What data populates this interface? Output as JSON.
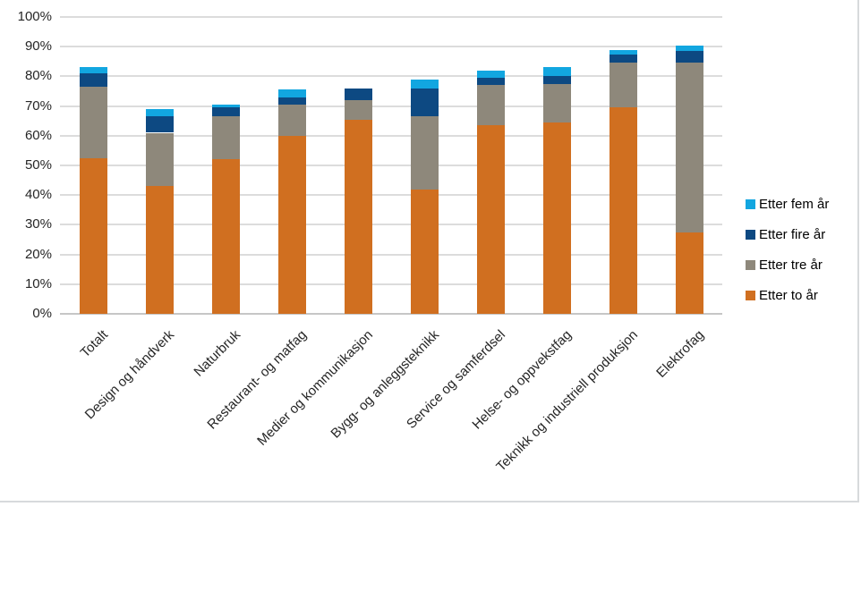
{
  "chart_data": {
    "type": "bar",
    "variant": "stacked-vertical",
    "title": "",
    "xlabel": "",
    "ylabel": "",
    "ylim": [
      0,
      100
    ],
    "ytick_step": 10,
    "yticks": [
      "0%",
      "10%",
      "20%",
      "30%",
      "40%",
      "50%",
      "60%",
      "70%",
      "80%",
      "90%",
      "100%"
    ],
    "grid": true,
    "legend_position": "right",
    "categories": [
      "Totalt",
      "Design og håndverk",
      "Naturbruk",
      "Restaurant- og matfag",
      "Medier og kommunikasjon",
      "Bygg- og anleggsteknikk",
      "Service og samferdsel",
      "Helse- og oppvekstfag",
      "Teknikk og industriell produksjon",
      "Elektrofag"
    ],
    "series": [
      {
        "name": "Etter to år",
        "color": "#d06f20",
        "values": [
          52.5,
          43,
          52,
          60,
          65.5,
          42,
          63.5,
          64.5,
          69.5,
          27.5
        ]
      },
      {
        "name": "Etter tre år",
        "color": "#8e887b",
        "values": [
          24,
          18,
          14.5,
          10.5,
          6.5,
          24.5,
          13.5,
          13,
          15,
          57
        ]
      },
      {
        "name": "Etter fire år",
        "color": "#0d4982",
        "values": [
          4.5,
          5.5,
          3,
          2.5,
          4,
          9.5,
          2.5,
          2.5,
          3,
          4
        ]
      },
      {
        "name": "Etter fem år",
        "color": "#12a6e0",
        "values": [
          2,
          2.5,
          1,
          2.5,
          0,
          3,
          2.5,
          3,
          1.5,
          2
        ]
      }
    ],
    "legend_order_series_indices": [
      3,
      2,
      1,
      0
    ],
    "cumulative_totals": [
      83,
      69,
      70.5,
      75.5,
      76,
      79,
      82,
      83,
      89,
      90.5
    ]
  },
  "style_colors": {
    "gridline": "#dcdcdc",
    "axis_line": "#c6c6c6",
    "text": "#262626",
    "frame_border": "#d7dadc"
  }
}
